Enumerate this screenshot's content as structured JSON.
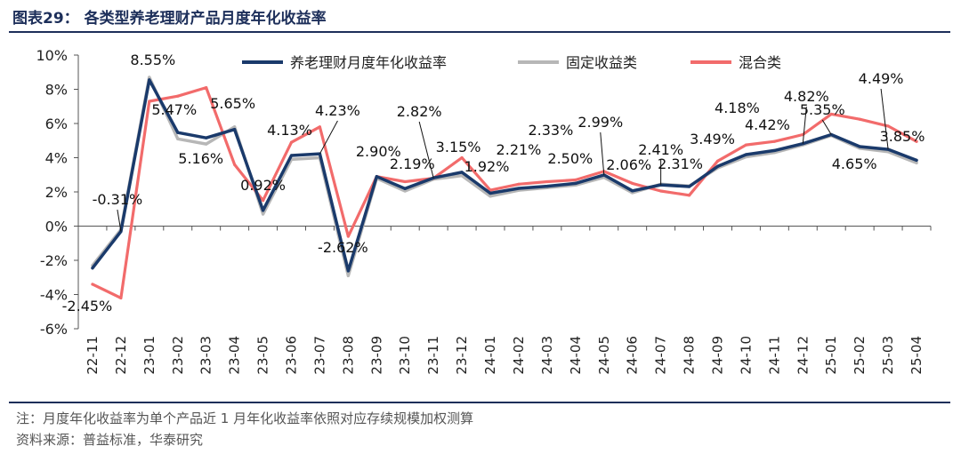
{
  "title": "图表29： 各类型养老理财产品月度年化收益率",
  "note": "注：月度年化收益率为单个产品近 1 月年化收益率依照对应存续规模加权测算",
  "source": "资料来源：普益标准，华泰研究",
  "chart_data": {
    "type": "line",
    "x": [
      "22-11",
      "22-12",
      "23-01",
      "23-02",
      "23-03",
      "23-04",
      "23-05",
      "23-06",
      "23-07",
      "23-08",
      "23-09",
      "23-10",
      "23-11",
      "23-12",
      "24-01",
      "24-02",
      "24-03",
      "24-04",
      "24-05",
      "24-06",
      "24-07",
      "24-08",
      "24-09",
      "24-10",
      "24-11",
      "24-12",
      "25-01",
      "25-02",
      "25-03",
      "25-04"
    ],
    "ylim": [
      -6,
      10
    ],
    "yticks": [
      -6,
      -4,
      -2,
      0,
      2,
      4,
      6,
      8,
      10
    ],
    "ytick_labels": [
      "-6%",
      "-4%",
      "-2%",
      "0%",
      "2%",
      "4%",
      "6%",
      "8%",
      "10%"
    ],
    "legend_position": "top",
    "series": [
      {
        "name": "养老理财月度年化收益率",
        "color": "#1a3a6b",
        "values": [
          -2.45,
          -0.31,
          8.55,
          5.47,
          5.16,
          5.65,
          0.92,
          4.13,
          4.23,
          -2.62,
          2.9,
          2.19,
          2.82,
          3.15,
          1.92,
          2.21,
          2.33,
          2.5,
          2.99,
          2.06,
          2.41,
          2.31,
          3.49,
          4.18,
          4.42,
          4.82,
          5.35,
          4.65,
          4.49,
          3.85
        ]
      },
      {
        "name": "固定收益类",
        "color": "#b7b7b7",
        "values": [
          -2.3,
          -0.2,
          8.7,
          5.1,
          4.8,
          5.8,
          0.7,
          3.9,
          4.0,
          -2.9,
          2.8,
          2.05,
          2.75,
          2.95,
          1.75,
          2.1,
          2.25,
          2.4,
          2.85,
          1.95,
          2.45,
          2.35,
          3.4,
          4.05,
          4.3,
          4.75,
          5.3,
          4.55,
          4.35,
          3.7
        ]
      },
      {
        "name": "混合类",
        "color": "#f26b6b",
        "values": [
          -3.4,
          -4.2,
          7.3,
          7.6,
          8.1,
          3.6,
          1.5,
          4.9,
          5.8,
          -0.6,
          2.9,
          2.6,
          2.8,
          4.0,
          2.1,
          2.45,
          2.6,
          2.7,
          3.2,
          2.5,
          2.05,
          1.8,
          3.8,
          4.75,
          4.95,
          5.35,
          6.55,
          6.25,
          5.85,
          4.95
        ]
      }
    ],
    "data_labels": [
      {
        "text": "-2.45%",
        "index": 0
      },
      {
        "text": "-0.31%",
        "index": 1
      },
      {
        "text": "8.55%",
        "index": 2
      },
      {
        "text": "5.47%",
        "index": 3
      },
      {
        "text": "5.16%",
        "index": 4
      },
      {
        "text": "5.65%",
        "index": 5
      },
      {
        "text": "0.92%",
        "index": 6
      },
      {
        "text": "4.13%",
        "index": 7
      },
      {
        "text": "4.23%",
        "index": 8
      },
      {
        "text": "-2.62%",
        "index": 9
      },
      {
        "text": "2.90%",
        "index": 10
      },
      {
        "text": "2.19%",
        "index": 11
      },
      {
        "text": "2.82%",
        "index": 12
      },
      {
        "text": "3.15%",
        "index": 13
      },
      {
        "text": "1.92%",
        "index": 14
      },
      {
        "text": "2.21%",
        "index": 15
      },
      {
        "text": "2.33%",
        "index": 16
      },
      {
        "text": "2.50%",
        "index": 17
      },
      {
        "text": "2.99%",
        "index": 18
      },
      {
        "text": "2.06%",
        "index": 19
      },
      {
        "text": "2.41%",
        "index": 20
      },
      {
        "text": "2.31%",
        "index": 21
      },
      {
        "text": "3.49%",
        "index": 22
      },
      {
        "text": "4.18%",
        "index": 23
      },
      {
        "text": "4.42%",
        "index": 24
      },
      {
        "text": "4.82%",
        "index": 25
      },
      {
        "text": "5.35%",
        "index": 26
      },
      {
        "text": "4.65%",
        "index": 27
      },
      {
        "text": "4.49%",
        "index": 28
      },
      {
        "text": "3.85%",
        "index": 29
      }
    ]
  }
}
